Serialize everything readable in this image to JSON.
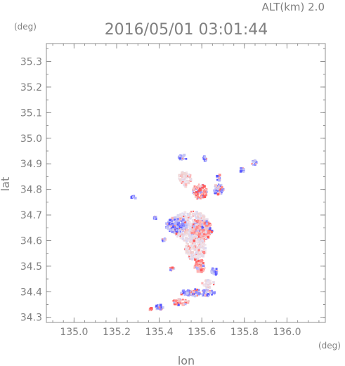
{
  "header": {
    "alt_label": "ALT(km)  2.0",
    "datetime": "2016/05/01 03:01:44",
    "y_unit": "(deg)",
    "x_unit": "(deg)"
  },
  "chart_data": {
    "type": "scatter",
    "xlabel": "lon",
    "ylabel": "lat",
    "xlim": [
      134.87,
      136.18
    ],
    "ylim": [
      34.28,
      35.37
    ],
    "x_ticks": [
      135.0,
      135.2,
      135.4,
      135.6,
      135.8,
      136.0
    ],
    "x_tick_labels": [
      "135.0",
      "135.2",
      "135.4",
      "135.6",
      "135.8",
      "136.0"
    ],
    "y_ticks": [
      34.3,
      34.4,
      34.5,
      34.6,
      34.7,
      34.8,
      34.9,
      35.0,
      35.1,
      35.2,
      35.3
    ],
    "y_tick_labels": [
      "34.3",
      "34.4",
      "34.5",
      "34.6",
      "34.7",
      "34.8",
      "34.9",
      "35.0",
      "35.1",
      "35.2",
      "35.3"
    ],
    "colors": {
      "positive": "#ff6b6b",
      "negative": "#6b6bff",
      "neutral": "#e6d9e6",
      "axis": "#909090"
    },
    "clusters": [
      {
        "lon": 135.51,
        "lat": 34.925,
        "rx": 0.02,
        "ry": 0.012,
        "tone": "negative"
      },
      {
        "lon": 135.615,
        "lat": 34.92,
        "rx": 0.01,
        "ry": 0.01,
        "tone": "negative"
      },
      {
        "lon": 135.845,
        "lat": 34.905,
        "rx": 0.012,
        "ry": 0.01,
        "tone": "negative"
      },
      {
        "lon": 135.52,
        "lat": 34.84,
        "rx": 0.03,
        "ry": 0.03,
        "tone": "neutral"
      },
      {
        "lon": 135.68,
        "lat": 34.845,
        "rx": 0.01,
        "ry": 0.015,
        "tone": "negative"
      },
      {
        "lon": 135.79,
        "lat": 34.875,
        "rx": 0.012,
        "ry": 0.008,
        "tone": "negative"
      },
      {
        "lon": 135.59,
        "lat": 34.79,
        "rx": 0.035,
        "ry": 0.03,
        "tone": "positive"
      },
      {
        "lon": 135.68,
        "lat": 34.8,
        "rx": 0.025,
        "ry": 0.02,
        "tone": "negative"
      },
      {
        "lon": 135.55,
        "lat": 34.655,
        "rx": 0.09,
        "ry": 0.06,
        "tone": "neutral"
      },
      {
        "lon": 135.6,
        "lat": 34.64,
        "rx": 0.05,
        "ry": 0.04,
        "tone": "positive"
      },
      {
        "lon": 135.48,
        "lat": 34.66,
        "rx": 0.05,
        "ry": 0.03,
        "tone": "negative"
      },
      {
        "lon": 135.57,
        "lat": 34.57,
        "rx": 0.05,
        "ry": 0.05,
        "tone": "neutral"
      },
      {
        "lon": 135.59,
        "lat": 34.5,
        "rx": 0.025,
        "ry": 0.025,
        "tone": "positive"
      },
      {
        "lon": 135.46,
        "lat": 34.49,
        "rx": 0.012,
        "ry": 0.01,
        "tone": "positive"
      },
      {
        "lon": 135.66,
        "lat": 34.48,
        "rx": 0.015,
        "ry": 0.015,
        "tone": "negative"
      },
      {
        "lon": 135.58,
        "lat": 34.395,
        "rx": 0.08,
        "ry": 0.015,
        "tone": "negative"
      },
      {
        "lon": 135.63,
        "lat": 34.43,
        "rx": 0.03,
        "ry": 0.015,
        "tone": "neutral"
      },
      {
        "lon": 135.5,
        "lat": 34.36,
        "rx": 0.04,
        "ry": 0.012,
        "tone": "positive"
      },
      {
        "lon": 135.4,
        "lat": 34.34,
        "rx": 0.02,
        "ry": 0.01,
        "tone": "negative"
      },
      {
        "lon": 135.36,
        "lat": 34.33,
        "rx": 0.008,
        "ry": 0.006,
        "tone": "positive"
      },
      {
        "lon": 135.28,
        "lat": 34.77,
        "rx": 0.015,
        "ry": 0.005,
        "tone": "negative"
      },
      {
        "lon": 135.38,
        "lat": 34.69,
        "rx": 0.006,
        "ry": 0.006,
        "tone": "negative"
      },
      {
        "lon": 135.42,
        "lat": 34.6,
        "rx": 0.01,
        "ry": 0.01,
        "tone": "negative"
      }
    ]
  }
}
